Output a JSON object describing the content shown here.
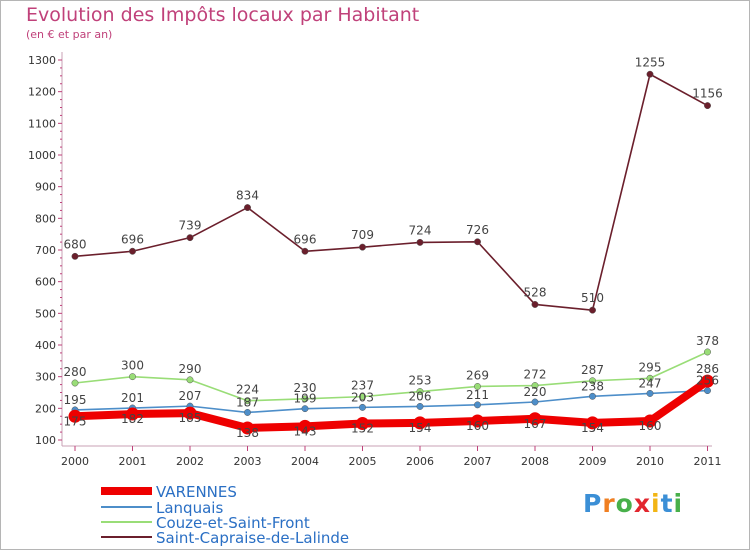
{
  "chart_data": {
    "type": "line",
    "title": "Evolution des Impôts locaux par Habitant",
    "subtitle": "(en € et par an)",
    "categories": [
      "2000",
      "2001",
      "2002",
      "2003",
      "2004",
      "2005",
      "2006",
      "2007",
      "2008",
      "2009",
      "2010",
      "2011"
    ],
    "ylim": [
      100,
      1300
    ],
    "yticks": [
      100,
      200,
      300,
      400,
      500,
      600,
      700,
      800,
      900,
      1000,
      1100,
      1200,
      1300
    ],
    "grid": false,
    "legend_position": "bottom-left",
    "series": [
      {
        "name": "Saint-Capraise-de-Lalinde",
        "color": "#6b1f2c",
        "values": [
          680,
          696,
          739,
          834,
          696,
          709,
          724,
          726,
          528,
          510,
          1255,
          1156
        ],
        "labels": [
          "680",
          "696",
          "739",
          "834",
          "696",
          "709",
          "724",
          "726",
          "528",
          "510",
          "1255",
          "1156"
        ],
        "labels_shown": true
      },
      {
        "name": "Couze-et-Saint-Front",
        "color": "#99dd77",
        "values": [
          280,
          300,
          290,
          224,
          230,
          237,
          253,
          269,
          272,
          287,
          295,
          378
        ],
        "labels": [
          "280",
          "300",
          "290",
          "224",
          "230",
          "237",
          "253",
          "269",
          "272",
          "287",
          "295",
          "378"
        ],
        "labels_shown": true
      },
      {
        "name": "Lanquais",
        "color": "#4d8ec9",
        "values": [
          195,
          201,
          207,
          187,
          199,
          203,
          206,
          211,
          220,
          238,
          247,
          256
        ],
        "labels": [
          "195",
          "201",
          "207",
          "187",
          "199",
          "203",
          "206",
          "211",
          "220",
          "238",
          "247",
          "256"
        ],
        "labels_shown": true
      },
      {
        "name": "VARENNES",
        "color": "#ee0000",
        "values": [
          175,
          182,
          185,
          138,
          143,
          152,
          154,
          160,
          167,
          154,
          160,
          286
        ],
        "labels": [
          "175",
          "182",
          "185",
          "138",
          "143",
          "152",
          "154",
          "160",
          "167",
          "154",
          "160",
          "286"
        ],
        "labels_shown": true
      }
    ],
    "legend_order": [
      "VARENNES",
      "Lanquais",
      "Couze-et-Saint-Front",
      "Saint-Capraise-de-Lalinde"
    ]
  },
  "logo": {
    "letters": [
      "P",
      "r",
      "o",
      "x",
      "i",
      "t",
      "i"
    ],
    "colors": [
      "#3b8fd6",
      "#f07f22",
      "#48b04a",
      "#e2262e",
      "#f2b515",
      "#3b8fd6",
      "#48b04a"
    ]
  }
}
